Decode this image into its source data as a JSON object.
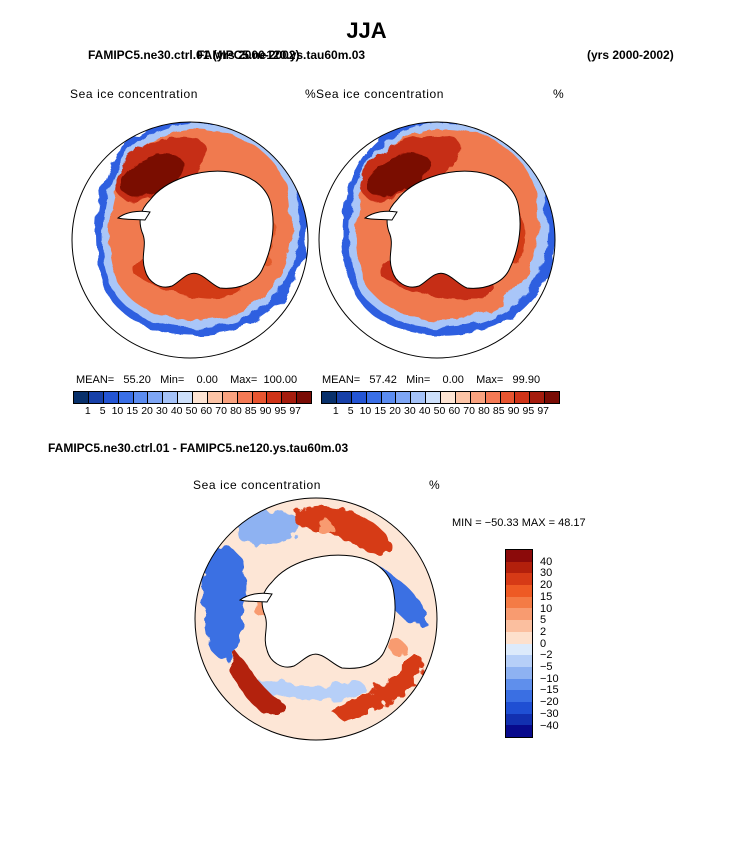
{
  "title": "JJA",
  "header": {
    "case1_title": "FAMIPC5.ne30.ctrl.01 (yrs 2000-2002)",
    "case2_title": "FAMIPC5.ne120.ys.tau60m.03",
    "case2_years": "(yrs 2000-2002)"
  },
  "panels": [
    {
      "name": "ne30",
      "variable": "Sea ice concentration",
      "units": "%",
      "stats": {
        "mean_label": "MEAN=",
        "mean": "55.20",
        "min_label": "Min=",
        "min": "0.00",
        "max_label": "Max=",
        "max": "100.00"
      }
    },
    {
      "name": "ne120",
      "variable": "Sea ice concentration",
      "units": "%",
      "stats": {
        "mean_label": "MEAN=",
        "mean": "57.42",
        "min_label": "Min=",
        "min": "0.00",
        "max_label": "Max=",
        "max": "99.90"
      }
    }
  ],
  "diff": {
    "title": "FAMIPC5.ne30.ctrl.01 - FAMIPC5.ne120.ys.tau60m.03",
    "variable": "Sea ice concentration",
    "units": "%",
    "minmax_text": "MIN = −50.33  MAX =   48.17"
  },
  "chart_data": [
    {
      "type": "heatmap",
      "title": "Sea ice concentration (FAMIPC5.ne30.ctrl.01)",
      "units": "%",
      "projection": "south polar stereographic",
      "mean": 55.2,
      "min": 0.0,
      "max": 100.0,
      "contour_levels": [
        1,
        5,
        10,
        15,
        20,
        30,
        40,
        50,
        60,
        70,
        80,
        85,
        90,
        95,
        97
      ]
    },
    {
      "type": "heatmap",
      "title": "Sea ice concentration (FAMIPC5.ne120.ys.tau60m.03)",
      "units": "%",
      "projection": "south polar stereographic",
      "mean": 57.42,
      "min": 0.0,
      "max": 99.9,
      "contour_levels": [
        1,
        5,
        10,
        15,
        20,
        30,
        40,
        50,
        60,
        70,
        80,
        85,
        90,
        95,
        97
      ]
    },
    {
      "type": "heatmap",
      "title": "Sea ice concentration difference",
      "units": "%",
      "min": -50.33,
      "max": 48.17,
      "contour_levels": [
        -40,
        -30,
        -20,
        -15,
        -10,
        -5,
        -2,
        0,
        2,
        5,
        10,
        15,
        20,
        30,
        40
      ]
    }
  ],
  "colorbar": {
    "labels": [
      "1",
      "5",
      "10",
      "15",
      "20",
      "30",
      "40",
      "50",
      "60",
      "70",
      "80",
      "85",
      "90",
      "95",
      "97"
    ],
    "colors": [
      "#08306b",
      "#1740a8",
      "#2455d4",
      "#3a6fe6",
      "#5b8cf0",
      "#7ea6f5",
      "#a4c2f8",
      "#cde0fb",
      "#fde4d3",
      "#fcc4a6",
      "#f9a27f",
      "#f47a55",
      "#e85530",
      "#cf3418",
      "#a51c0d",
      "#7a0c05"
    ]
  },
  "diff_colorbar": {
    "labels": [
      "40",
      "30",
      "20",
      "15",
      "10",
      "5",
      "2",
      "0",
      "−2",
      "−5",
      "−10",
      "−15",
      "−20",
      "−30",
      "−40"
    ],
    "colors": [
      "#8b0a0a",
      "#b3200c",
      "#d63a16",
      "#ee5a24",
      "#f47b45",
      "#f89b70",
      "#fbbf9f",
      "#fde0cc",
      "#dceafb",
      "#b6cff8",
      "#8eb2f2",
      "#5f8fec",
      "#3a6fe3",
      "#1f4fd3",
      "#1230b0",
      "#080a8c"
    ]
  }
}
